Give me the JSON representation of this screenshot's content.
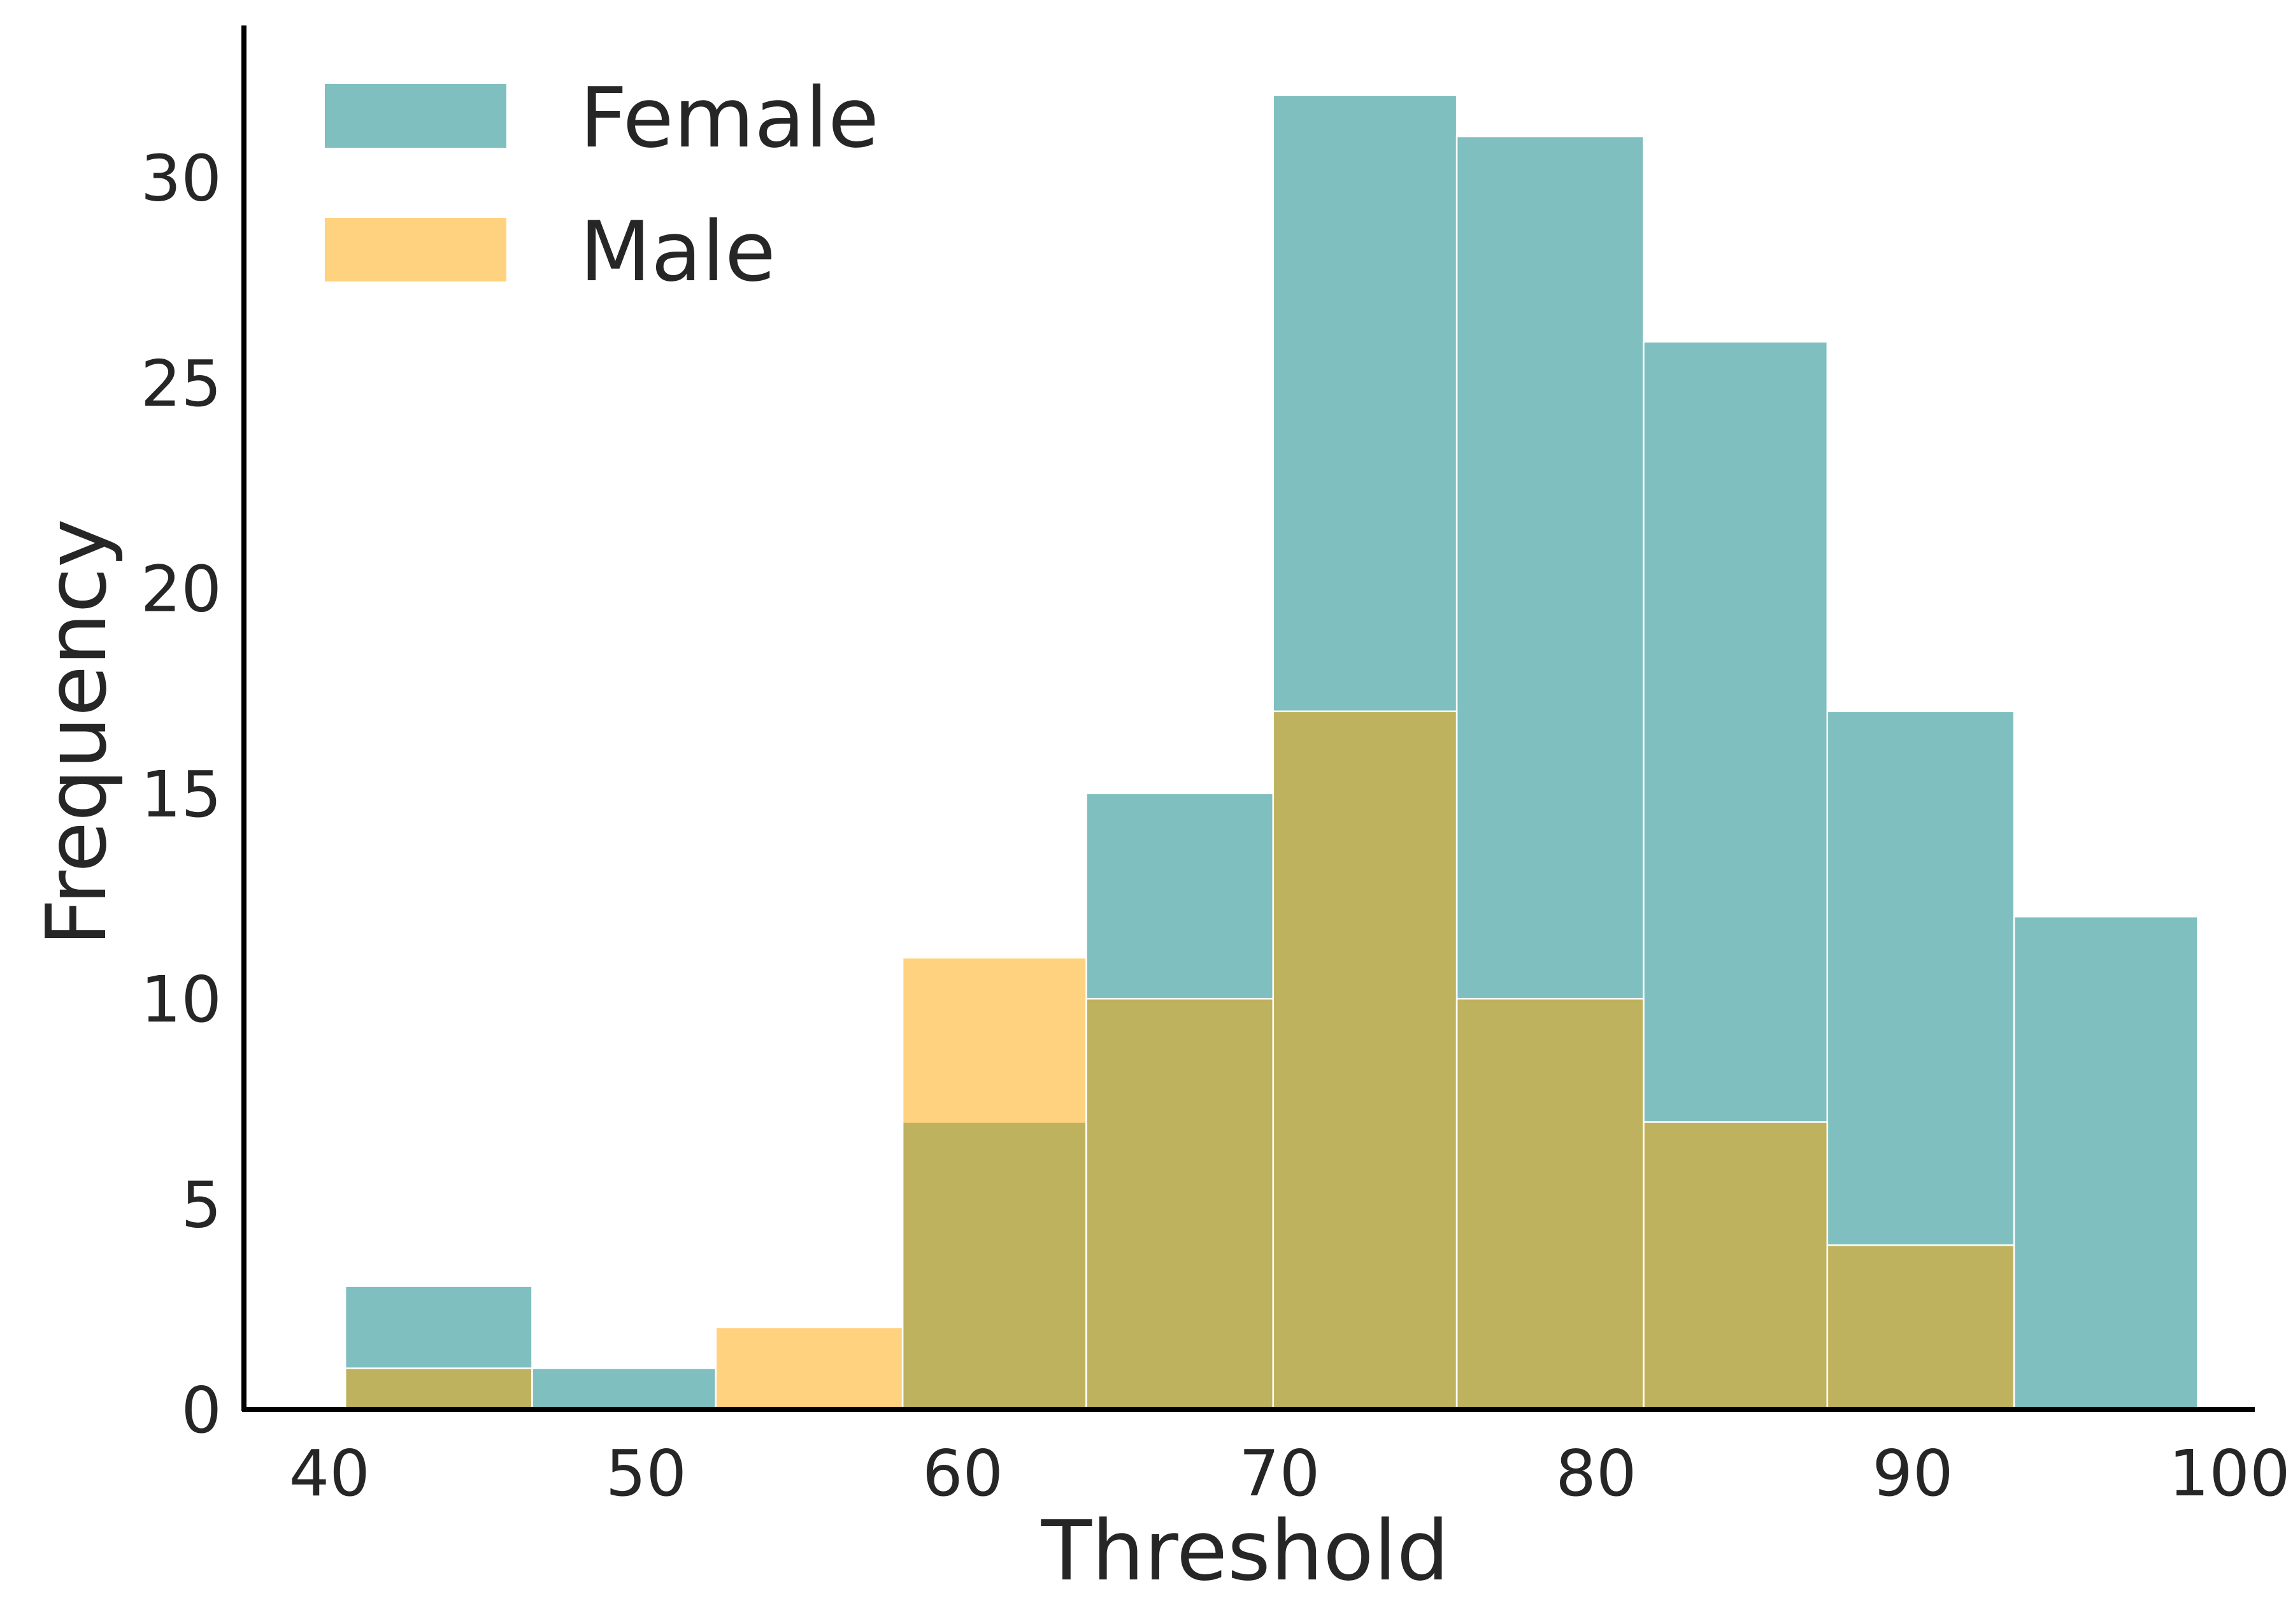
{
  "chart_data": {
    "type": "bar",
    "subtype": "overlaid-histogram",
    "xlabel": "Threshold",
    "ylabel": "Frequency",
    "xlim": [
      37.3,
      100.8
    ],
    "ylim": [
      0,
      33.7
    ],
    "xticks": [
      40,
      50,
      60,
      70,
      80,
      90,
      100
    ],
    "yticks": [
      0,
      5,
      10,
      15,
      20,
      25,
      30
    ],
    "bin_edges": [
      40.5,
      46.4,
      52.2,
      58.1,
      63.9,
      69.8,
      75.6,
      81.5,
      87.3,
      93.2,
      99.0
    ],
    "series": [
      {
        "name": "Female",
        "color": "#008080",
        "opacity": 0.5,
        "values": [
          3,
          1,
          0,
          7,
          15,
          32,
          31,
          26,
          17,
          12
        ]
      },
      {
        "name": "Male",
        "color": "#FFA500",
        "opacity": 0.5,
        "values": [
          1,
          0,
          2,
          11,
          10,
          17,
          10,
          7,
          4,
          0
        ]
      }
    ],
    "legend": {
      "position": "top-left"
    },
    "grid": false
  }
}
